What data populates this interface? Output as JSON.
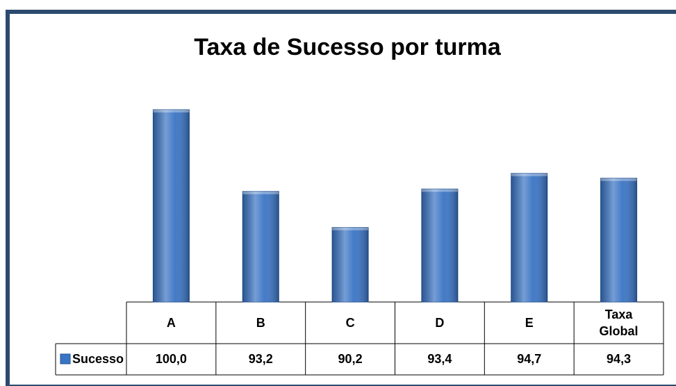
{
  "chart_data": {
    "type": "bar",
    "title": "Taxa de Sucesso por turma",
    "categories": [
      "A",
      "B",
      "C",
      "D",
      "E",
      "Taxa Global"
    ],
    "series": [
      {
        "name": "Sucesso",
        "color": "#3a74c4",
        "values": [
          100.0,
          93.2,
          90.2,
          93.4,
          94.7,
          94.3
        ],
        "value_labels": [
          "100,0",
          "93,2",
          "90,2",
          "93,4",
          "94,7",
          "94,3"
        ]
      }
    ],
    "ylim": [
      84,
      100
    ]
  }
}
